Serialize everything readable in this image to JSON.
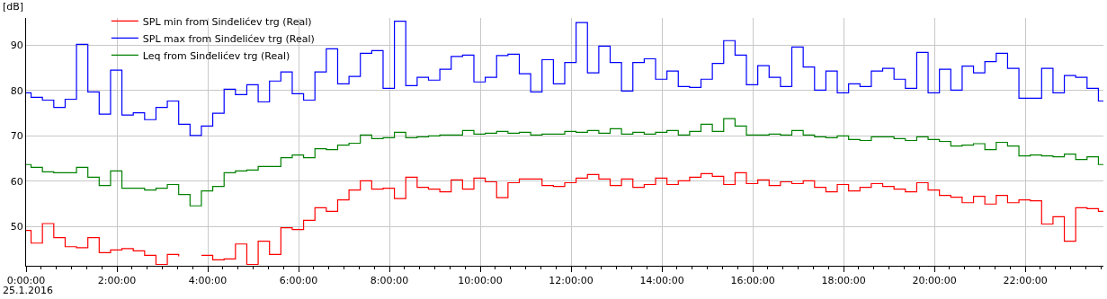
{
  "chart_data": {
    "type": "step",
    "ylabel": "[dB]",
    "annotations": [
      "25.1.2016"
    ],
    "x": [
      0,
      0.11,
      0.36,
      0.61,
      0.86,
      1.11,
      1.36,
      1.61,
      1.86,
      2.11,
      2.36,
      2.61,
      2.86,
      3.11,
      3.36,
      3.61,
      3.86,
      4.11,
      4.36,
      4.61,
      4.86,
      5.11,
      5.36,
      5.61,
      5.86,
      6.11,
      6.36,
      6.61,
      6.86,
      7.11,
      7.36,
      7.61,
      7.86,
      8.11,
      8.36,
      8.61,
      8.86,
      9.11,
      9.36,
      9.61,
      9.86,
      10.11,
      10.36,
      10.61,
      10.86,
      11.11,
      11.36,
      11.61,
      11.86,
      12.11,
      12.36,
      12.61,
      12.86,
      13.11,
      13.36,
      13.61,
      13.86,
      14.11,
      14.36,
      14.61,
      14.86,
      15.11,
      15.36,
      15.61,
      15.86,
      16.11,
      16.36,
      16.61,
      16.86,
      17.11,
      17.36,
      17.61,
      17.86,
      18.11,
      18.36,
      18.61,
      18.86,
      19.11,
      19.36,
      19.61,
      19.86,
      20.11,
      20.36,
      20.61,
      20.86,
      21.11,
      21.36,
      21.61,
      21.86,
      22.11,
      22.36,
      22.61,
      22.86,
      23.11,
      23.36,
      23.61
    ],
    "series": [
      {
        "name": "SPL min from Sinđelićev trg (Real)",
        "color": "#ff0000",
        "values": [
          49.2,
          46.4,
          50.7,
          47.6,
          45.6,
          45.4,
          47.6,
          44.3,
          44.9,
          45.2,
          44.7,
          43.7,
          41.7,
          43.9,
          43.5,
          null,
          43.7,
          42.7,
          42.9,
          46.2,
          41.7,
          46.8,
          43.9,
          49.8,
          49.4,
          51.4,
          54.2,
          53.4,
          55.9,
          58.1,
          60.1,
          58.3,
          58.5,
          56.2,
          60.9,
          58.7,
          58.3,
          57.7,
          60.3,
          58.3,
          60.7,
          59.9,
          56.4,
          59.7,
          60.5,
          60.5,
          59.1,
          58.9,
          59.7,
          60.7,
          61.5,
          60.5,
          59.1,
          60.5,
          58.7,
          59.3,
          60.7,
          59.3,
          60.1,
          60.9,
          61.7,
          61.1,
          59.3,
          61.9,
          59.5,
          60.3,
          59.1,
          59.9,
          59.5,
          60.1,
          58.7,
          57.7,
          59.3,
          57.9,
          58.7,
          59.5,
          58.9,
          58.3,
          57.7,
          59.7,
          58.1,
          56.9,
          56.5,
          55.3,
          56.7,
          55.0,
          56.9,
          55.3,
          55.9,
          55.7,
          50.6,
          52.2,
          46.8,
          54.2,
          54.0,
          53.4
        ]
      },
      {
        "name": "SPL max from Sinđelićev trg (Real)",
        "color": "#0000ff",
        "values": [
          79.5,
          78.5,
          77.9,
          76.3,
          78.1,
          90.2,
          79.7,
          74.8,
          84.5,
          74.6,
          75.1,
          73.6,
          76.3,
          77.7,
          72.6,
          70.1,
          72.2,
          75.0,
          80.3,
          79.1,
          81.3,
          77.5,
          82.1,
          84.1,
          79.3,
          77.9,
          84.1,
          89.2,
          81.5,
          83.1,
          88.2,
          88.8,
          80.5,
          95.3,
          81.1,
          82.9,
          82.3,
          84.7,
          87.5,
          87.8,
          81.9,
          82.9,
          87.7,
          88.0,
          83.7,
          79.7,
          86.8,
          81.5,
          86.2,
          95.0,
          83.9,
          89.8,
          86.2,
          79.9,
          86.2,
          87.0,
          82.5,
          84.3,
          80.9,
          80.7,
          82.5,
          86.0,
          91.0,
          87.8,
          81.3,
          85.5,
          82.9,
          80.9,
          89.6,
          85.2,
          80.1,
          84.3,
          79.5,
          81.5,
          80.9,
          84.3,
          84.9,
          82.5,
          80.5,
          88.4,
          79.5,
          84.7,
          80.1,
          85.4,
          83.9,
          86.4,
          88.2,
          84.9,
          78.3,
          78.3,
          84.9,
          79.5,
          83.3,
          82.9,
          80.5,
          77.7
        ]
      },
      {
        "name": "Leq from Sinđelićev trg (Real)",
        "color": "#008000",
        "values": [
          63.7,
          63.1,
          62.1,
          61.9,
          61.9,
          63.1,
          60.9,
          59.1,
          62.3,
          58.5,
          58.5,
          58.1,
          58.5,
          59.3,
          57.1,
          54.6,
          57.9,
          58.9,
          61.9,
          62.3,
          62.5,
          63.3,
          63.3,
          65.2,
          65.8,
          65.2,
          67.2,
          67.0,
          68.0,
          68.4,
          70.2,
          69.4,
          69.6,
          70.8,
          69.6,
          69.8,
          70.0,
          70.2,
          70.2,
          71.2,
          70.4,
          70.6,
          71.0,
          70.6,
          70.8,
          70.2,
          70.4,
          70.4,
          71.0,
          70.8,
          71.2,
          70.6,
          71.6,
          70.4,
          70.8,
          70.4,
          70.8,
          71.2,
          70.2,
          71.0,
          72.6,
          71.0,
          73.8,
          72.2,
          70.2,
          70.2,
          70.4,
          70.2,
          71.2,
          70.2,
          69.8,
          69.6,
          70.0,
          69.2,
          69.0,
          69.8,
          69.8,
          69.4,
          69.0,
          69.8,
          69.2,
          68.8,
          67.8,
          68.0,
          68.3,
          67.0,
          68.6,
          67.8,
          65.6,
          65.8,
          65.6,
          65.4,
          66.0,
          64.8,
          65.4,
          63.7
        ]
      }
    ],
    "xlim": [
      0,
      23.72
    ],
    "xticks": [
      {
        "value": 0,
        "label": "0:00:00"
      },
      {
        "value": 2,
        "label": "2:00:00"
      },
      {
        "value": 4,
        "label": "4:00:00"
      },
      {
        "value": 6,
        "label": "6:00:00"
      },
      {
        "value": 8,
        "label": "8:00:00"
      },
      {
        "value": 10,
        "label": "10:00:00"
      },
      {
        "value": 12,
        "label": "12:00:00"
      },
      {
        "value": 14,
        "label": "14:00:00"
      },
      {
        "value": 16,
        "label": "16:00:00"
      },
      {
        "value": 18,
        "label": "18:00:00"
      },
      {
        "value": 20,
        "label": "20:00:00"
      },
      {
        "value": 22,
        "label": "22:00:00"
      }
    ],
    "ylim": [
      41.4,
      96
    ],
    "yticks": [
      50,
      60,
      70,
      80,
      90
    ],
    "grid": true,
    "legend": "top left",
    "marker": "none",
    "line_style": "solid"
  }
}
